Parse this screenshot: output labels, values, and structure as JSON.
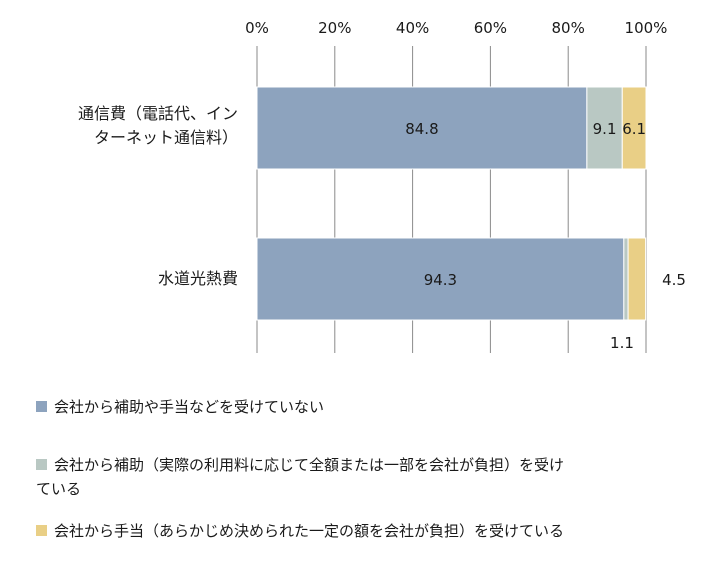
{
  "chart_data": {
    "type": "bar",
    "orientation": "horizontal",
    "stacked": true,
    "categories": [
      "通信費（電話代、インターネット通信料）",
      "水道光熱費"
    ],
    "category_label_lines": [
      [
        "通信費（電話代、イン",
        "ターネット通信料）"
      ],
      [
        "水道光熱費"
      ]
    ],
    "series": [
      {
        "name": "会社から補助や手当などを受けていない",
        "color": "#8da3be",
        "values": [
          84.8,
          94.3
        ]
      },
      {
        "name": "会社から補助（実際の利用料に応じて全額または一部を会社が負担）を受けている",
        "legend_lines": [
          "会社から補助（実際の利用料に応じて全額または一部を会社が負担）を受け",
          "ている"
        ],
        "color": "#b9c8c3",
        "values": [
          9.1,
          1.1
        ]
      },
      {
        "name": "会社から手当（あらかじめ決められた一定の額を会社が負担）を受けている",
        "color": "#e9cf86",
        "values": [
          6.1,
          4.5
        ]
      }
    ],
    "data_labels": [
      [
        "84.8",
        "9.1",
        "6.1"
      ],
      [
        "94.3",
        "1.1",
        "4.5"
      ]
    ],
    "x_ticks": [
      "0%",
      "20%",
      "40%",
      "60%",
      "80%",
      "100%"
    ],
    "xlim": [
      0,
      100
    ],
    "grid": "vertical",
    "legend_position": "bottom",
    "title": "",
    "xlabel": "",
    "ylabel": ""
  }
}
